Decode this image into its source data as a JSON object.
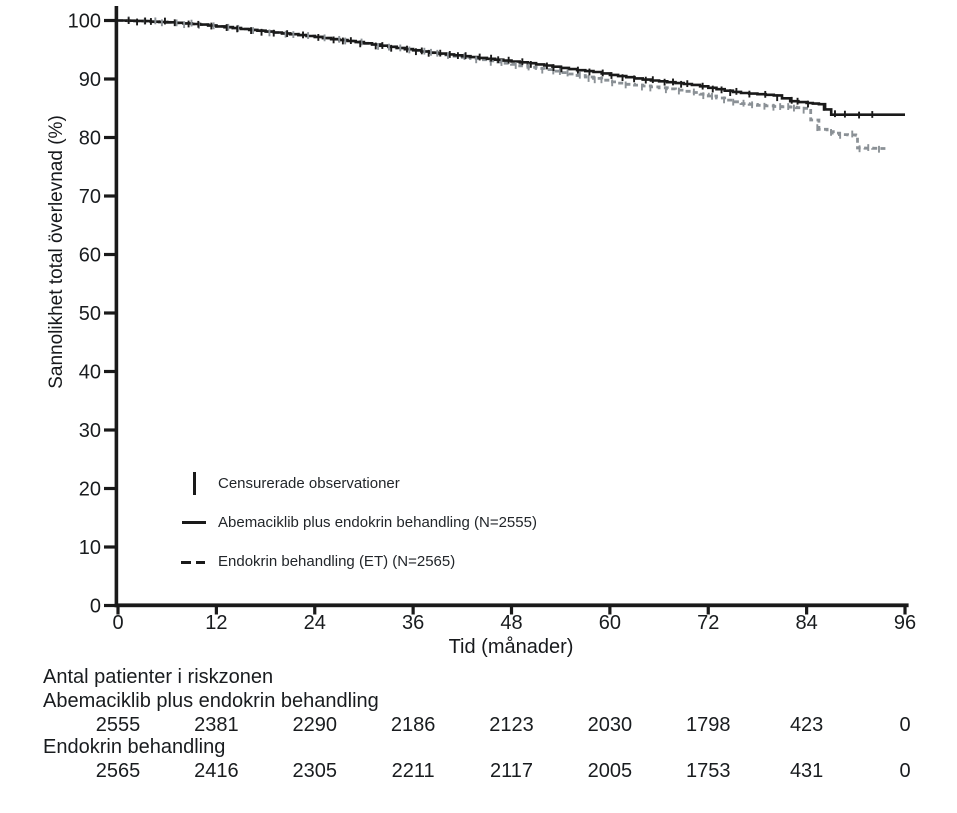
{
  "figure": {
    "kind": "kaplan-meier-survival-plot",
    "background": "#ffffff"
  },
  "axes": {
    "y_label": "Sannolikhet total överlevnad (%)",
    "x_label": "Tid (månader)",
    "y_ticks": [
      0,
      10,
      20,
      30,
      40,
      50,
      60,
      70,
      80,
      90,
      100
    ],
    "x_ticks": [
      0,
      12,
      24,
      36,
      48,
      60,
      72,
      84,
      96
    ],
    "x_range": [
      0,
      96
    ],
    "y_range": [
      0,
      100
    ],
    "grid": false
  },
  "legend": {
    "position": "inside-lower-left",
    "censor_label": "Censurerade observationer"
  },
  "colors": {
    "series1": "#1a1a1a",
    "series2": "#8b9196",
    "axis": "#1a1a1a",
    "text": "#191c1f"
  },
  "chart_data": {
    "type": "line",
    "subtype": "kaplan-meier-step",
    "title": "",
    "xlabel": "Tid (månader)",
    "ylabel": "Sannolikhet total överlevnad (%)",
    "xlim": [
      0,
      96
    ],
    "ylim": [
      0,
      100
    ],
    "legend_position": "inside-lower-left",
    "censor_marks": "short vertical ticks scattered densely along both curves",
    "series": [
      {
        "name": "Abemaciklib plus endokrin behandling (N=2555)",
        "color": "#1a1a1a",
        "line_style": "solid",
        "points": [
          [
            0,
            100
          ],
          [
            3,
            99.9
          ],
          [
            4,
            99.8
          ],
          [
            6,
            99.7
          ],
          [
            8,
            99.5
          ],
          [
            10,
            99.3
          ],
          [
            12,
            99.0
          ],
          [
            14,
            98.7
          ],
          [
            16,
            98.4
          ],
          [
            18,
            98.1
          ],
          [
            20,
            97.8
          ],
          [
            22,
            97.5
          ],
          [
            24,
            97.2
          ],
          [
            26,
            96.8
          ],
          [
            28,
            96.5
          ],
          [
            30,
            96.1
          ],
          [
            32,
            95.7
          ],
          [
            34,
            95.3
          ],
          [
            36,
            94.9
          ],
          [
            38,
            94.5
          ],
          [
            40,
            94.2
          ],
          [
            42,
            93.9
          ],
          [
            44,
            93.6
          ],
          [
            46,
            93.3
          ],
          [
            48,
            93.0
          ],
          [
            50,
            92.7
          ],
          [
            52,
            92.3
          ],
          [
            54,
            91.9
          ],
          [
            56,
            91.5
          ],
          [
            58,
            91.2
          ],
          [
            60,
            90.7
          ],
          [
            62,
            90.3
          ],
          [
            64,
            89.9
          ],
          [
            66,
            89.6
          ],
          [
            68,
            89.3
          ],
          [
            70,
            89.0
          ],
          [
            72,
            88.5
          ],
          [
            74,
            88.0
          ],
          [
            76,
            87.6
          ],
          [
            78,
            87.4
          ],
          [
            80,
            87.2
          ],
          [
            82,
            86.2
          ],
          [
            84,
            85.9
          ],
          [
            85.5,
            85.7
          ],
          [
            87,
            83.9
          ],
          [
            96,
            83.9
          ]
        ],
        "censor_tick_t_max": 92.3
      },
      {
        "name": "Endokrin behandling (ET) (N=2565)",
        "color": "#8b9196",
        "line_style": "dashed",
        "points": [
          [
            0,
            100
          ],
          [
            3,
            99.9
          ],
          [
            4,
            99.8
          ],
          [
            6,
            99.7
          ],
          [
            8,
            99.5
          ],
          [
            10,
            99.3
          ],
          [
            12,
            99.0
          ],
          [
            14,
            98.7
          ],
          [
            16,
            98.4
          ],
          [
            18,
            98.1
          ],
          [
            20,
            97.8
          ],
          [
            22,
            97.5
          ],
          [
            24,
            97.2
          ],
          [
            26,
            96.8
          ],
          [
            28,
            96.5
          ],
          [
            30,
            96.1
          ],
          [
            32,
            95.7
          ],
          [
            34,
            95.3
          ],
          [
            36,
            94.9
          ],
          [
            38,
            94.5
          ],
          [
            40,
            94.1
          ],
          [
            42,
            93.7
          ],
          [
            44,
            93.3
          ],
          [
            46,
            92.9
          ],
          [
            48,
            92.5
          ],
          [
            50,
            92.0
          ],
          [
            52,
            91.6
          ],
          [
            54,
            91.1
          ],
          [
            56,
            90.6
          ],
          [
            58,
            90.1
          ],
          [
            60,
            89.5
          ],
          [
            62,
            89.1
          ],
          [
            64,
            88.8
          ],
          [
            66,
            88.5
          ],
          [
            68,
            88.1
          ],
          [
            70,
            87.7
          ],
          [
            72,
            87.1
          ],
          [
            74,
            86.4
          ],
          [
            76,
            85.8
          ],
          [
            78,
            85.5
          ],
          [
            80,
            85.3
          ],
          [
            82,
            85.2
          ],
          [
            83.5,
            85.0
          ],
          [
            84.5,
            83.0
          ],
          [
            85.5,
            81.4
          ],
          [
            86.5,
            81.0
          ],
          [
            88,
            80.5
          ],
          [
            90,
            80.4
          ],
          [
            90.2,
            78.2
          ],
          [
            93.9,
            78.1
          ]
        ],
        "censor_tick_t_max": 93.7
      }
    ],
    "at_risk": {
      "title": "Antal patienter i riskzonen",
      "time_points": [
        0,
        12,
        24,
        36,
        48,
        60,
        72,
        84,
        96
      ],
      "rows": [
        {
          "label": "Abemaciklib plus endokrin behandling",
          "counts": [
            2555,
            2381,
            2290,
            2186,
            2123,
            2030,
            1798,
            423,
            0
          ]
        },
        {
          "label": "Endokrin behandling",
          "counts": [
            2565,
            2416,
            2305,
            2211,
            2117,
            2005,
            1753,
            431,
            0
          ]
        }
      ]
    }
  }
}
